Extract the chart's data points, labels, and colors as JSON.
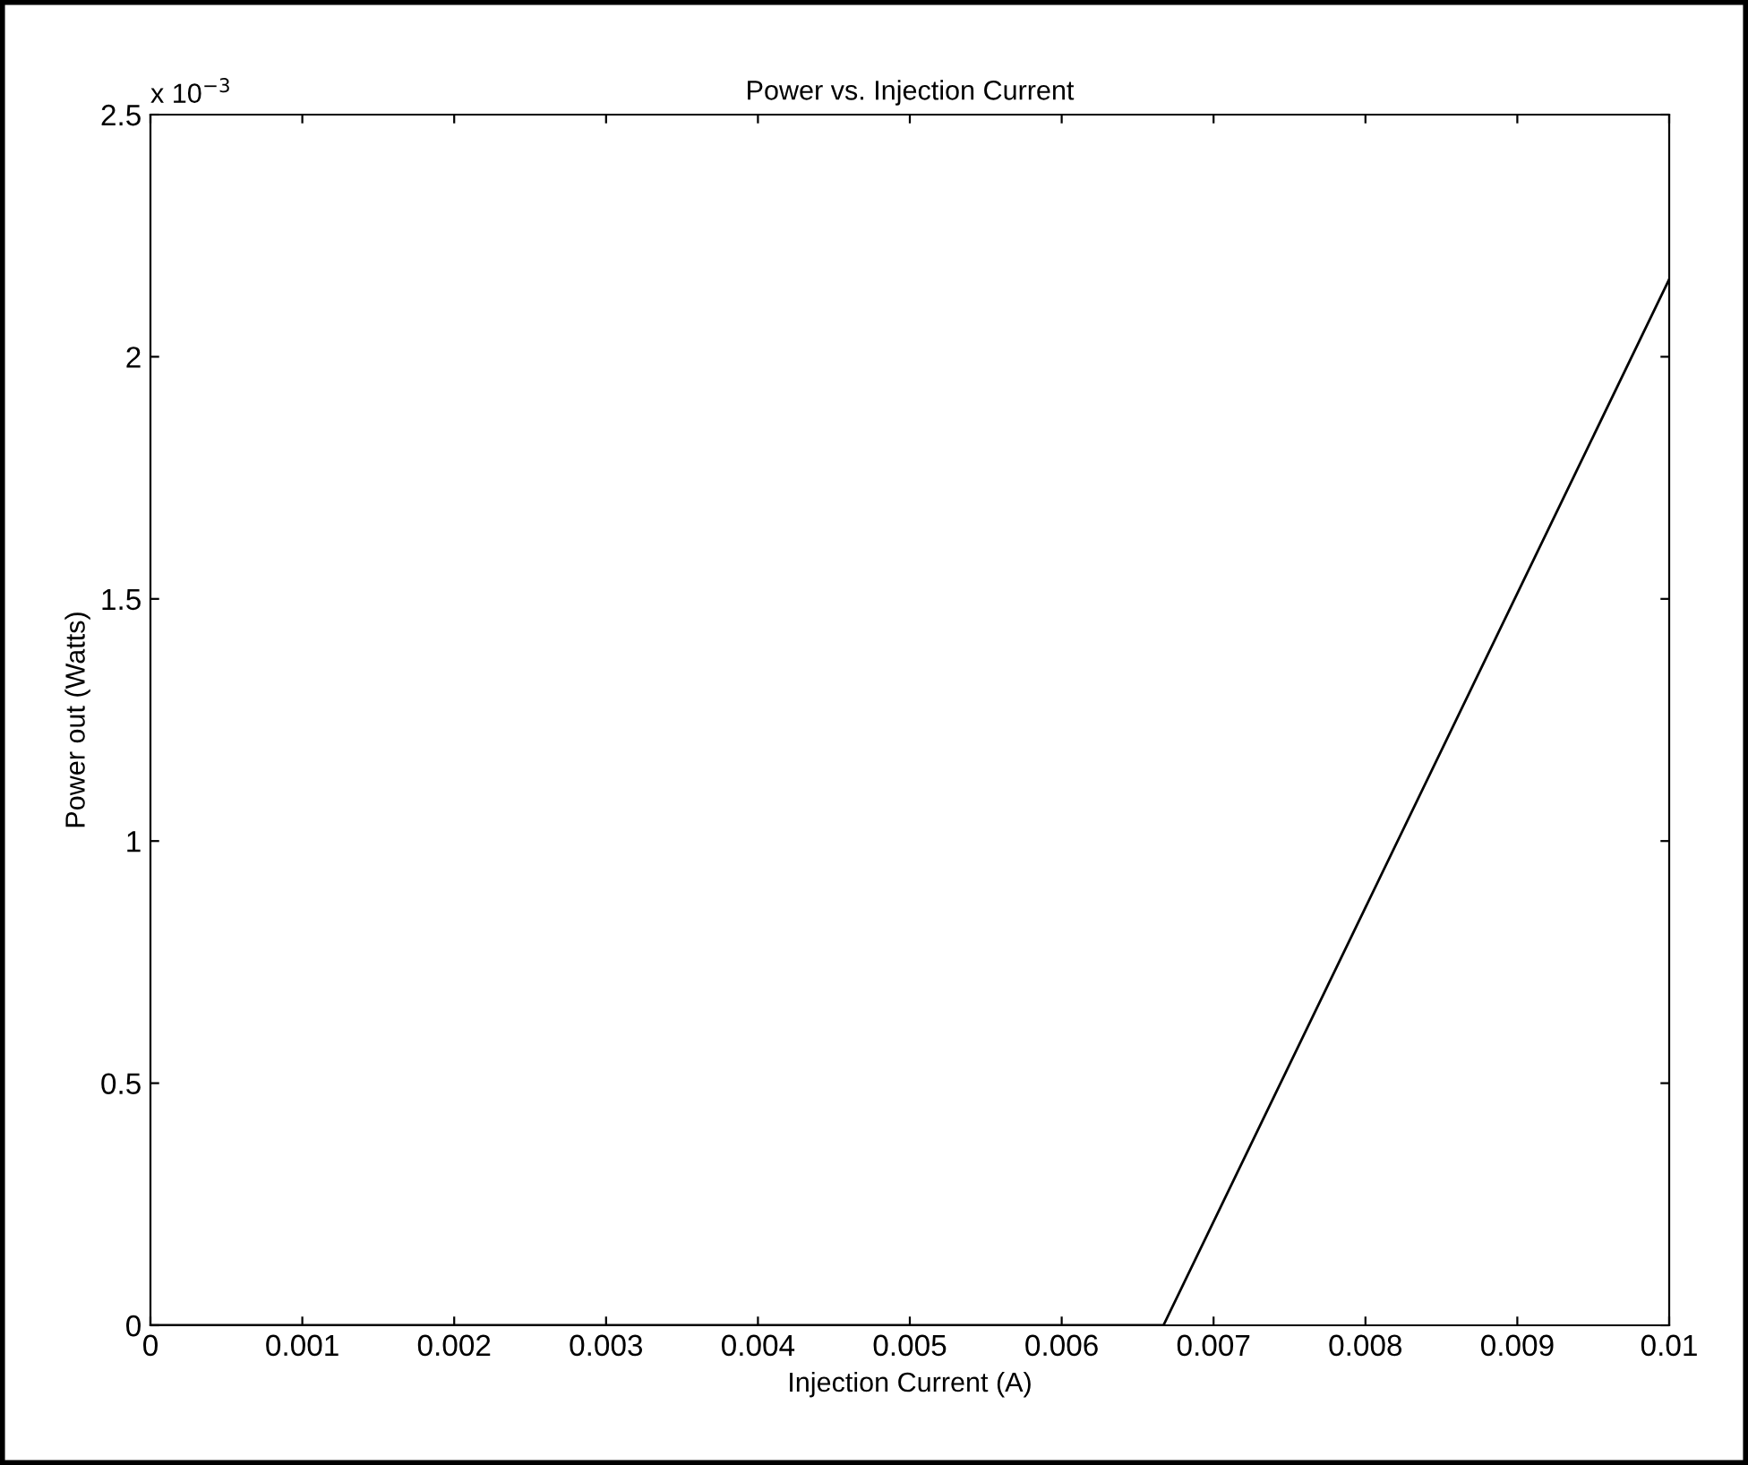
{
  "chart_data": {
    "type": "line",
    "title": "Power vs. Injection Current",
    "xlabel": "Injection Current (A)",
    "ylabel": "Power out (Watts)",
    "annotations": [
      "x 10$^{−3}$"
    ],
    "x": [
      0,
      0.00667,
      0.01
    ],
    "series": [
      {
        "color": "#000000",
        "values": [
          0,
          0,
          2.16
        ]
      }
    ],
    "xlim": [
      0,
      0.01
    ],
    "xticks": [
      0,
      0.001,
      0.002,
      0.003,
      0.004,
      0.005,
      0.006,
      0.007,
      0.008,
      0.009,
      0.01
    ],
    "ylim": [
      0,
      2.5
    ],
    "yticks": [
      0,
      0.5,
      1,
      1.5,
      2,
      2.5
    ],
    "line_style": "solid"
  }
}
